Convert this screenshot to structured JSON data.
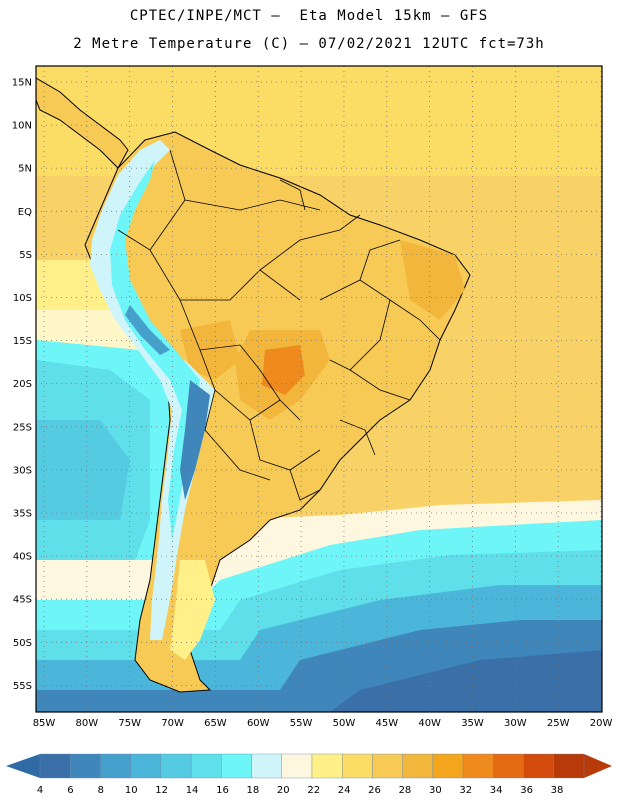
{
  "header": {
    "line1": "CPTEC/INPE/MCT –  Eta Model 15km – GFS",
    "line2": "2 Metre Temperature (C) – 07/02/2021 12UTC fct=73h"
  },
  "map": {
    "lat_labels": [
      "15N",
      "10N",
      "5N",
      "EQ",
      "5S",
      "10S",
      "15S",
      "20S",
      "25S",
      "30S",
      "35S",
      "40S",
      "45S",
      "50S",
      "55S"
    ],
    "lon_labels": [
      "85W",
      "80W",
      "75W",
      "70W",
      "65W",
      "60W",
      "55W",
      "50W",
      "45W",
      "40W",
      "35W",
      "30W",
      "25W",
      "20W"
    ]
  },
  "colorbar": {
    "ticks": [
      "4",
      "6",
      "8",
      "10",
      "12",
      "14",
      "16",
      "18",
      "20",
      "22",
      "24",
      "26",
      "28",
      "30",
      "32",
      "34",
      "36",
      "38"
    ],
    "colors": [
      "#3a6fa8",
      "#3f86bb",
      "#45a0cc",
      "#4bb6d9",
      "#55cbe2",
      "#5fdfea",
      "#6df5f7",
      "#cff5fb",
      "#fdf7e0",
      "#fff08a",
      "#fbdc64",
      "#f7ca55",
      "#f2b63c",
      "#f3a51c",
      "#ee8a1e",
      "#e46a14",
      "#d24a0c",
      "#b83a08"
    ]
  }
}
